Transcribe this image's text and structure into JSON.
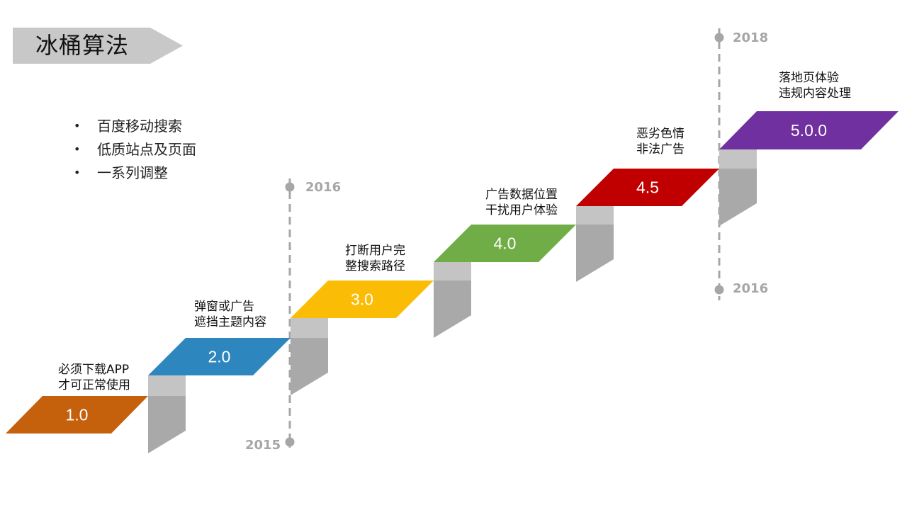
{
  "title": "冰桶算法",
  "bullets": [
    "百度移动搜索",
    "低质站点及页面",
    "一系列调整"
  ],
  "years": {
    "line1_top": "2016",
    "line1_bottom": "2015",
    "line2_top": "2018",
    "line2_bottom": "2016"
  },
  "steps": [
    {
      "version": "1.0",
      "color": "#c5600d",
      "label": [
        "必须下载APP",
        "才可正常使用"
      ]
    },
    {
      "version": "2.0",
      "color": "#2e86be",
      "label": [
        "弹窗或广告",
        "遮挡主题内容"
      ]
    },
    {
      "version": "3.0",
      "color": "#fbbc05",
      "label": [
        "打断用户完",
        "整搜索路径"
      ]
    },
    {
      "version": "4.0",
      "color": "#70ad47",
      "label": [
        "广告数据位置",
        "干扰用户体验"
      ]
    },
    {
      "version": "4.5",
      "color": "#c00000",
      "label": [
        "恶劣色情",
        "非法广告"
      ]
    },
    {
      "version": "5.0.0",
      "color": "#7030a0",
      "label": [
        "落地页体验",
        "违规内容处理"
      ]
    }
  ],
  "colors": {
    "banner": "#c8c8c8",
    "riser_front": "#a9a9a9",
    "riser_side": "#c4c4c4",
    "timeline": "#a6a6a6"
  }
}
